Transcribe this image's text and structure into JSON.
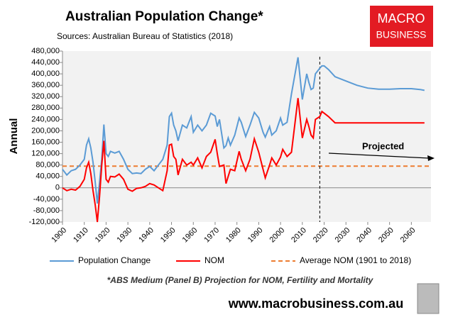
{
  "chart_data": {
    "type": "line",
    "title": "Australian Population Change*",
    "subtitle": "Sources: Australian Bureau of Statistics (2018)",
    "y_label": "Annual",
    "annotation": "Projected",
    "footnote": "*ABS Medium (Panel B) Projection for NOM, Fertility and Mortality",
    "website": "www.macrobusiness.com.au",
    "logo": [
      "MACRO",
      "BUSINESS"
    ],
    "projection_start": 2018,
    "x": [
      1900,
      1902,
      1904,
      1906,
      1908,
      1910,
      1911,
      1912,
      1913,
      1914,
      1915,
      1916,
      1917,
      1918,
      1919,
      1920,
      1921,
      1922,
      1924,
      1926,
      1928,
      1930,
      1932,
      1934,
      1936,
      1938,
      1940,
      1942,
      1944,
      1946,
      1948,
      1949,
      1950,
      1951,
      1952,
      1953,
      1955,
      1957,
      1959,
      1960,
      1962,
      1964,
      1966,
      1968,
      1970,
      1971,
      1972,
      1974,
      1975,
      1976,
      1977,
      1979,
      1981,
      1982,
      1984,
      1986,
      1988,
      1990,
      1992,
      1993,
      1995,
      1996,
      1998,
      2000,
      2001,
      2003,
      2005,
      2008,
      2010,
      2012,
      2013,
      2014,
      2015,
      2016,
      2018,
      2019,
      2020,
      2022,
      2025,
      2030,
      2035,
      2040,
      2045,
      2050,
      2055,
      2060,
      2064,
      2066
    ],
    "series": [
      {
        "name": "Population Change",
        "color": "#5b9bd5",
        "values": [
          65000,
          45000,
          60000,
          65000,
          80000,
          100000,
          150000,
          172000,
          140000,
          90000,
          20000,
          -55000,
          20000,
          100000,
          222000,
          120000,
          110000,
          128000,
          122000,
          128000,
          100000,
          65000,
          50000,
          52000,
          50000,
          65000,
          75000,
          60000,
          80000,
          100000,
          150000,
          250000,
          262000,
          220000,
          200000,
          165000,
          220000,
          210000,
          250000,
          195000,
          220000,
          200000,
          220000,
          262000,
          252000,
          215000,
          240000,
          140000,
          148000,
          175000,
          150000,
          185000,
          245000,
          230000,
          180000,
          220000,
          265000,
          245000,
          195000,
          178000,
          215000,
          185000,
          200000,
          245000,
          220000,
          230000,
          330000,
          458000,
          310000,
          400000,
          370000,
          345000,
          350000,
          400000,
          420000,
          428000,
          428000,
          415000,
          390000,
          375000,
          360000,
          350000,
          346000,
          346000,
          348000,
          348000,
          345000,
          342000
        ]
      },
      {
        "name": "NOM",
        "color": "#ff0000",
        "values": [
          0,
          -10000,
          -5000,
          -8000,
          5000,
          30000,
          70000,
          90000,
          50000,
          -10000,
          -60000,
          -120000,
          -30000,
          80000,
          165000,
          30000,
          20000,
          40000,
          38000,
          48000,
          30000,
          -5000,
          -12000,
          -2000,
          0,
          5000,
          15000,
          10000,
          0,
          -10000,
          60000,
          150000,
          153000,
          110000,
          100000,
          45000,
          100000,
          80000,
          90000,
          80000,
          105000,
          70000,
          110000,
          125000,
          170000,
          120000,
          75000,
          80000,
          15000,
          40000,
          65000,
          60000,
          128000,
          100000,
          60000,
          100000,
          172000,
          125000,
          65000,
          35000,
          80000,
          105000,
          80000,
          108000,
          135000,
          110000,
          125000,
          315000,
          175000,
          240000,
          215000,
          185000,
          175000,
          240000,
          250000,
          268000,
          262000,
          250000,
          228000,
          228000,
          228000,
          228000,
          228000,
          228000,
          228000,
          228000,
          228000,
          228000
        ]
      }
    ],
    "reference_line": {
      "name": "Average NOM (1901 to 2018)",
      "value": 76000,
      "color": "#ed7d31"
    },
    "xlim": [
      1900,
      2069
    ],
    "xticks": [
      1900,
      1910,
      1920,
      1930,
      1940,
      1950,
      1960,
      1970,
      1980,
      1990,
      2000,
      2010,
      2020,
      2030,
      2040,
      2050,
      2060
    ],
    "ylim": [
      -120000,
      480000
    ],
    "yticks": [
      {
        "value": -120000,
        "label": "-120,000"
      },
      {
        "value": -80000,
        "label": "-80,000"
      },
      {
        "value": -40000,
        "label": "-40,000"
      },
      0,
      {
        "value": 40000,
        "label": "40,000"
      },
      {
        "value": 80000,
        "label": "80,000"
      },
      {
        "value": 120000,
        "label": "120,000"
      },
      {
        "value": 160000,
        "label": "160,000"
      },
      {
        "value": 200000,
        "label": "200,000"
      },
      {
        "value": 240000,
        "label": "240,000"
      },
      {
        "value": 280000,
        "label": "280,000"
      },
      {
        "value": 320000,
        "label": "320,000"
      },
      {
        "value": 360000,
        "label": "360,000"
      },
      {
        "value": 400000,
        "label": "400,000"
      },
      {
        "value": 440000,
        "label": "440,000"
      },
      {
        "value": 480000,
        "label": "480,000"
      }
    ]
  }
}
